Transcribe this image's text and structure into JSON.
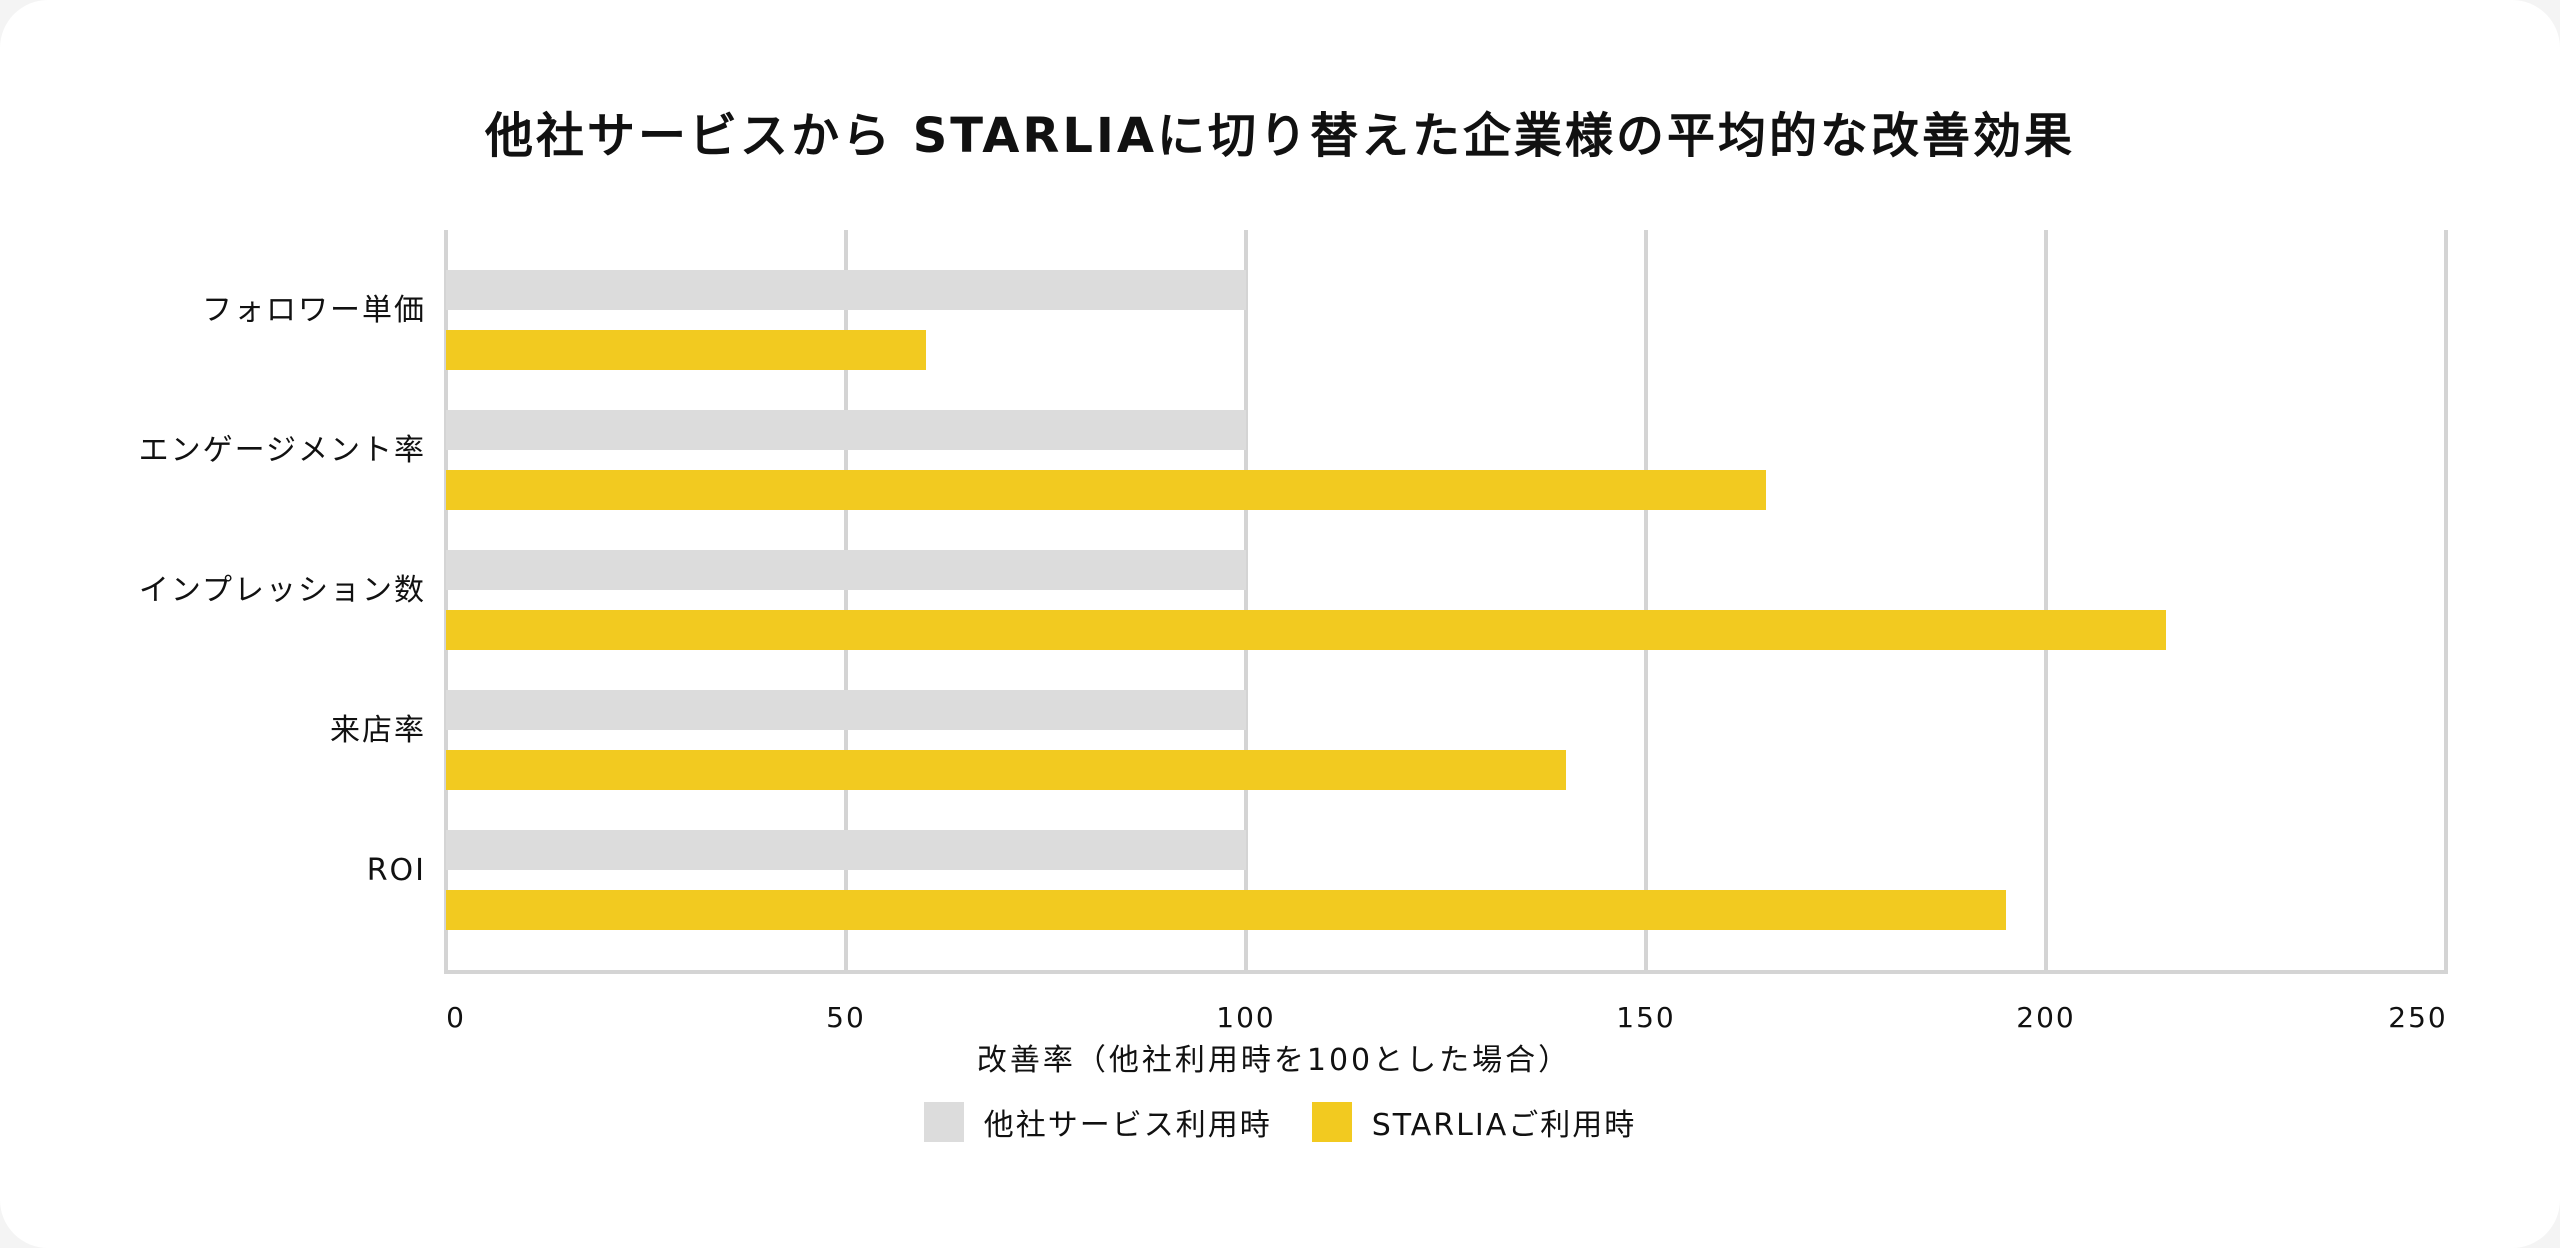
{
  "chart_data": {
    "type": "bar",
    "orientation": "horizontal",
    "title": "他社サービスから STARLIAに切り替えた企業様の平均的な改善効果",
    "xlabel": "改善率（他社利用時を100とした場合）",
    "ylabel": "",
    "xlim": [
      0,
      250
    ],
    "xticks": [
      0,
      50,
      100,
      150,
      200,
      250
    ],
    "grid": true,
    "legend_position": "bottom",
    "categories": [
      "フォロワー単価",
      "エンゲージメント率",
      "インプレッション数",
      "来店率",
      "ROI"
    ],
    "series": [
      {
        "name": "他社サービス利用時",
        "color": "#dcdcdc",
        "values": [
          100,
          100,
          100,
          100,
          100
        ]
      },
      {
        "name": "STARLIAご利用時",
        "color": "#f2ca20",
        "values": [
          60,
          165,
          215,
          140,
          195
        ]
      }
    ]
  },
  "colors": {
    "axis": "#d4d4d4",
    "text": "#111111",
    "background": "#ffffff"
  }
}
